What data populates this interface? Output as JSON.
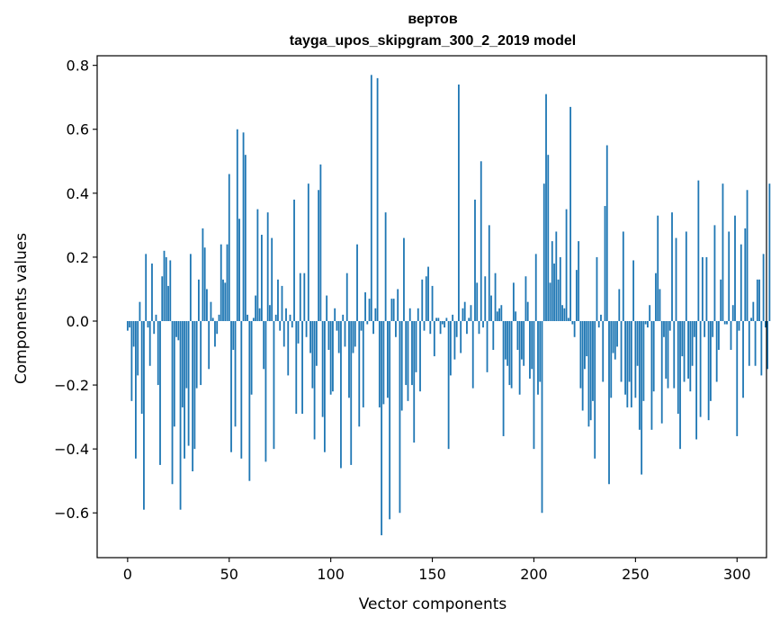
{
  "chart_data": {
    "type": "bar",
    "title": "вертов",
    "subtitle": "tayga_upos_skipgram_300_2_2019 model",
    "xlabel": "Vector components",
    "ylabel": "Components values",
    "xlim": [
      -15,
      314.5
    ],
    "ylim": [
      -0.74,
      0.83
    ],
    "xticks": [
      0,
      50,
      100,
      150,
      200,
      250,
      300
    ],
    "xtick_labels": [
      "0",
      "50",
      "100",
      "150",
      "200",
      "250",
      "300"
    ],
    "yticks": [
      -0.6,
      -0.4,
      -0.2,
      0.0,
      0.2,
      0.4,
      0.6,
      0.8
    ],
    "ytick_labels": [
      "−0.6",
      "−0.4",
      "−0.2",
      "0.0",
      "0.2",
      "0.4",
      "0.6",
      "0.8"
    ],
    "bar_color": "#1f77b4",
    "grid": false,
    "values": [
      -0.03,
      -0.02,
      -0.25,
      -0.08,
      -0.43,
      -0.17,
      0.06,
      -0.29,
      -0.59,
      0.21,
      -0.02,
      -0.14,
      0.18,
      -0.04,
      0.02,
      -0.2,
      -0.45,
      0.14,
      0.22,
      0.2,
      0.11,
      0.19,
      -0.51,
      -0.33,
      -0.05,
      -0.06,
      -0.59,
      -0.27,
      -0.43,
      -0.21,
      -0.39,
      0.21,
      -0.47,
      -0.4,
      -0.21,
      0.13,
      -0.2,
      0.29,
      0.23,
      0.1,
      -0.15,
      0.06,
      0.01,
      -0.08,
      -0.04,
      0.02,
      0.24,
      0.13,
      0.12,
      0.24,
      0.46,
      -0.41,
      -0.09,
      -0.33,
      0.6,
      0.32,
      -0.43,
      0.59,
      0.52,
      0.02,
      -0.5,
      -0.23,
      0.01,
      0.08,
      0.35,
      0.04,
      0.27,
      -0.15,
      -0.44,
      0.34,
      0.05,
      0.26,
      -0.4,
      0.02,
      0.13,
      -0.03,
      0.11,
      -0.08,
      0.04,
      -0.17,
      0.02,
      -0.02,
      0.38,
      -0.29,
      -0.07,
      0.15,
      -0.29,
      0.15,
      -0.05,
      0.43,
      -0.1,
      -0.21,
      -0.37,
      -0.14,
      0.41,
      0.49,
      -0.3,
      -0.41,
      0.08,
      -0.09,
      -0.23,
      -0.22,
      0.04,
      -0.03,
      -0.1,
      -0.46,
      0.02,
      -0.08,
      0.15,
      -0.24,
      -0.45,
      -0.1,
      -0.08,
      0.24,
      -0.33,
      -0.03,
      -0.27,
      0.09,
      -0.01,
      0.07,
      0.77,
      -0.04,
      0.04,
      0.76,
      -0.27,
      -0.67,
      -0.26,
      0.34,
      -0.24,
      -0.62,
      0.07,
      0.07,
      -0.05,
      0.1,
      -0.6,
      -0.28,
      0.26,
      -0.2,
      -0.25,
      0.04,
      -0.2,
      -0.38,
      -0.16,
      0.04,
      -0.22,
      0.13,
      -0.03,
      0.14,
      0.17,
      -0.04,
      0.11,
      -0.11,
      0.01,
      0.01,
      -0.04,
      -0.01,
      -0.02,
      0.01,
      -0.4,
      -0.17,
      0.02,
      -0.12,
      -0.05,
      0.74,
      -0.1,
      0.04,
      0.06,
      -0.04,
      0.01,
      0.05,
      -0.21,
      0.38,
      0.12,
      -0.04,
      0.5,
      -0.02,
      0.14,
      -0.16,
      0.3,
      0.08,
      -0.09,
      0.15,
      0.03,
      0.04,
      0.05,
      -0.36,
      -0.12,
      -0.14,
      -0.2,
      -0.21,
      0.12,
      0.03,
      -0.09,
      -0.23,
      -0.12,
      -0.14,
      0.14,
      0.06,
      -0.18,
      -0.15,
      -0.4,
      0.21,
      -0.23,
      -0.19,
      -0.6,
      0.43,
      0.71,
      0.52,
      0.12,
      0.25,
      0.18,
      0.28,
      0.13,
      0.2,
      0.05,
      0.04,
      0.35,
      0.01,
      0.67,
      -0.01,
      -0.05,
      0.16,
      0.25,
      -0.21,
      -0.28,
      -0.15,
      -0.11,
      -0.33,
      -0.31,
      -0.25,
      -0.43,
      0.2,
      -0.02,
      0.02,
      -0.19,
      0.36,
      0.55,
      -0.51,
      -0.24,
      -0.1,
      -0.12,
      -0.08,
      0.1,
      -0.19,
      0.28,
      -0.23,
      -0.27,
      -0.19,
      -0.27,
      0.19,
      -0.24,
      -0.14,
      -0.34,
      -0.48,
      -0.25,
      -0.01,
      -0.02,
      0.05,
      -0.34,
      -0.22,
      0.15,
      0.33,
      0.1,
      -0.32,
      -0.05,
      -0.18,
      -0.21,
      -0.03,
      0.34,
      -0.21,
      0.26,
      -0.29,
      -0.4,
      -0.11,
      -0.19,
      0.28,
      -0.18,
      -0.22,
      -0.14,
      -0.05,
      -0.37,
      0.44,
      -0.3,
      0.2,
      -0.05,
      0.2,
      -0.31,
      -0.25,
      -0.05,
      0.3,
      -0.19,
      -0.09,
      0.13,
      0.43,
      -0.01,
      -0.01,
      0.28,
      -0.09,
      0.05,
      0.33,
      -0.36,
      -0.03,
      0.24,
      -0.24,
      0.29,
      0.41,
      -0.14,
      0.01,
      0.06,
      -0.14,
      0.13,
      0.13,
      -0.17,
      0.21,
      -0.02,
      -0.15,
      0.43
    ]
  }
}
